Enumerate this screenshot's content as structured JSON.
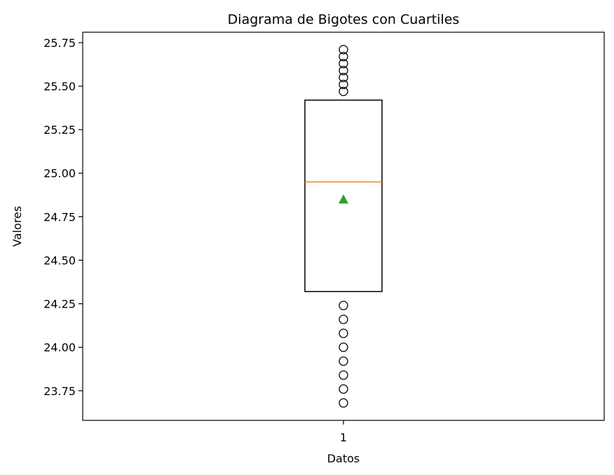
{
  "chart_data": {
    "type": "boxplot",
    "title": "Diagrama de Bigotes con Cuartiles",
    "xlabel": "Datos",
    "ylabel": "Valores",
    "categories": [
      "1"
    ],
    "ylim": [
      23.58,
      25.81
    ],
    "yticks": [
      23.75,
      24.0,
      24.25,
      24.5,
      24.75,
      25.0,
      25.25,
      25.5,
      25.75
    ],
    "ytick_labels": [
      "23.75",
      "24.00",
      "24.25",
      "24.50",
      "24.75",
      "25.00",
      "25.25",
      "25.50",
      "25.75"
    ],
    "grid": false,
    "box": {
      "q1": 24.32,
      "median": 24.95,
      "q3": 25.42,
      "mean": 24.85
    },
    "outliers": [
      25.71,
      25.67,
      25.63,
      25.59,
      25.55,
      25.51,
      25.47,
      24.24,
      24.16,
      24.08,
      24.0,
      23.92,
      23.84,
      23.76,
      23.68
    ],
    "colors": {
      "box": "#000000",
      "median": "#ff7f0e",
      "mean": "#2ca02c",
      "outlier": "#000000"
    }
  }
}
